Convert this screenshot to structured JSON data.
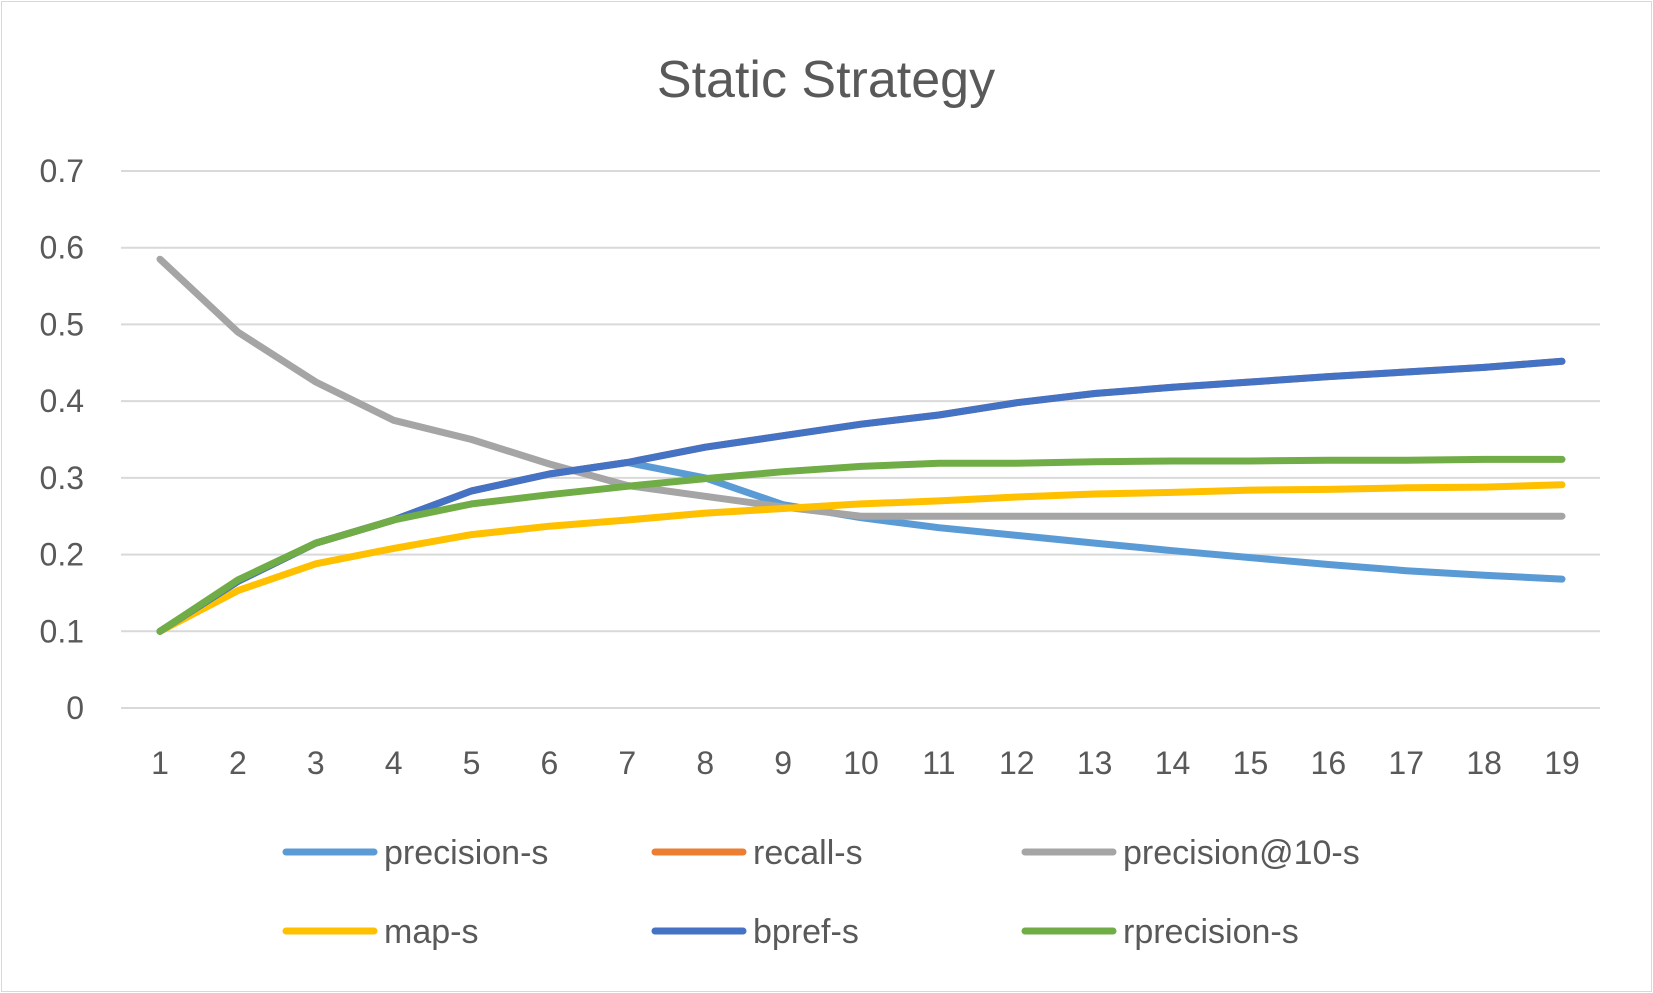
{
  "chart_data": {
    "type": "line",
    "title": "Static Strategy",
    "xlabel": "",
    "ylabel": "",
    "x": [
      "1",
      "2",
      "3",
      "4",
      "5",
      "6",
      "7",
      "8",
      "9",
      "10",
      "11",
      "12",
      "13",
      "14",
      "15",
      "16",
      "17",
      "18",
      "19"
    ],
    "ylim": [
      0,
      0.7
    ],
    "yticks": [
      "0.7",
      "0.6",
      "0.5",
      "0.4",
      "0.3",
      "0.2",
      "0.1",
      "0"
    ],
    "ytick_values": [
      0.7,
      0.6,
      0.5,
      0.4,
      0.3,
      0.2,
      0.1,
      0
    ],
    "grid": true,
    "legend_position": "bottom",
    "series": [
      {
        "name": "precision-s",
        "color": "#5b9bd5",
        "values": [
          0.1,
          0.165,
          0.215,
          0.245,
          0.283,
          0.305,
          0.32,
          0.3,
          0.265,
          0.248,
          0.235,
          0.225,
          0.215,
          0.205,
          0.196,
          0.187,
          0.179,
          0.173,
          0.168
        ]
      },
      {
        "name": "recall-s",
        "color": "#ed7d31",
        "values": [
          0.1,
          0.165,
          0.215,
          0.245,
          0.283,
          0.305,
          0.32,
          0.34,
          0.355,
          0.37,
          0.382,
          0.398,
          0.41,
          0.418,
          0.425,
          0.432,
          0.438,
          0.444,
          0.452
        ]
      },
      {
        "name": "precision@10-s",
        "color": "#a5a5a5",
        "values": [
          0.585,
          0.49,
          0.425,
          0.375,
          0.35,
          0.318,
          0.29,
          0.276,
          0.262,
          0.25,
          0.25,
          0.25,
          0.25,
          0.25,
          0.25,
          0.25,
          0.25,
          0.25,
          0.25
        ]
      },
      {
        "name": "map-s",
        "color": "#ffc000",
        "values": [
          0.1,
          0.153,
          0.188,
          0.208,
          0.226,
          0.237,
          0.245,
          0.254,
          0.26,
          0.266,
          0.27,
          0.275,
          0.279,
          0.281,
          0.284,
          0.285,
          0.287,
          0.288,
          0.291
        ]
      },
      {
        "name": "bpref-s",
        "color": "#4472c4",
        "values": [
          0.1,
          0.165,
          0.215,
          0.245,
          0.283,
          0.305,
          0.32,
          0.34,
          0.355,
          0.37,
          0.382,
          0.398,
          0.41,
          0.418,
          0.425,
          0.432,
          0.438,
          0.444,
          0.452
        ]
      },
      {
        "name": "rprecision-s",
        "color": "#70ad47",
        "values": [
          0.1,
          0.167,
          0.215,
          0.245,
          0.266,
          0.278,
          0.289,
          0.299,
          0.308,
          0.315,
          0.319,
          0.319,
          0.321,
          0.322,
          0.322,
          0.323,
          0.323,
          0.324,
          0.324
        ]
      }
    ]
  }
}
